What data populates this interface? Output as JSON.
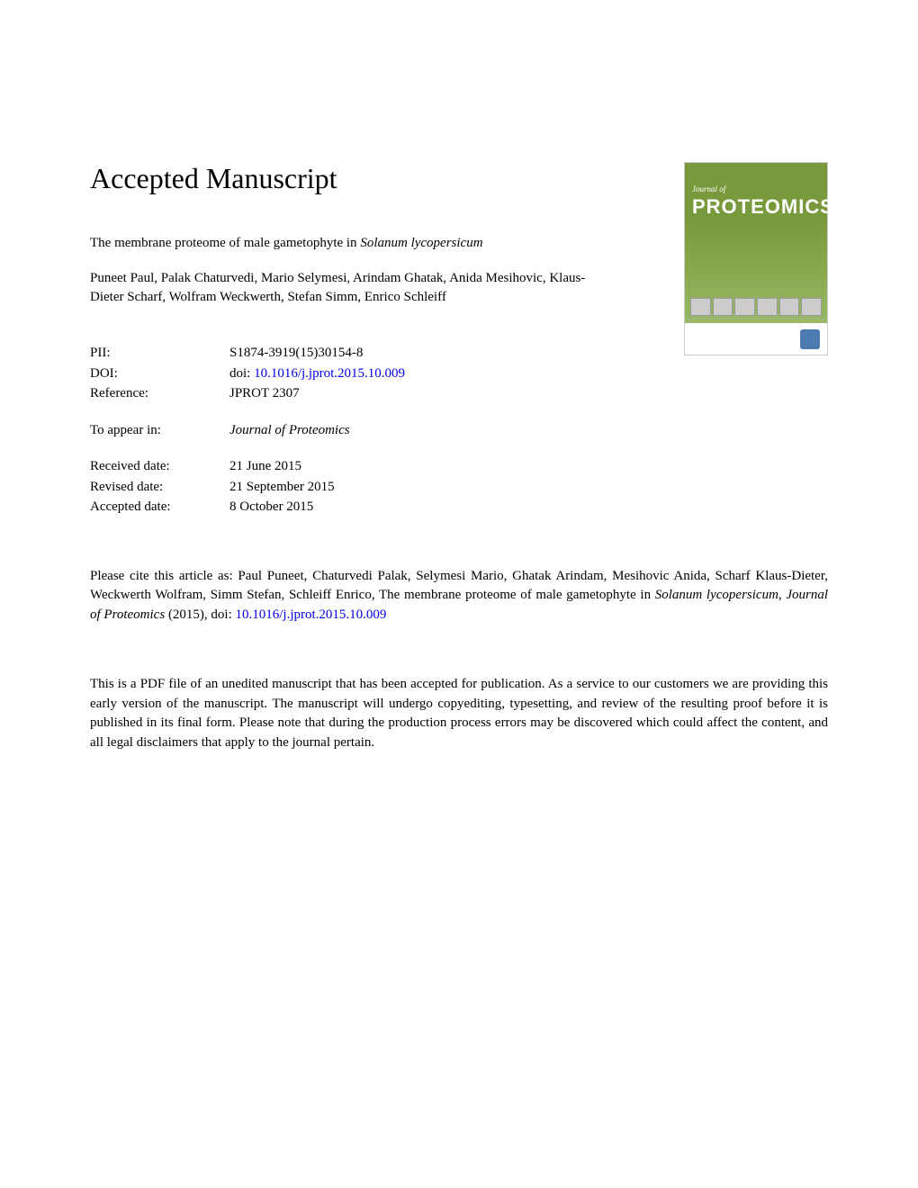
{
  "header": {
    "accepted_title": "Accepted Manuscript",
    "article_title_main": "The membrane proteome of male gametophyte in ",
    "article_title_italic": "Solanum lycopersicum",
    "authors": "Puneet Paul, Palak Chaturvedi, Mario Selymesi, Arindam Ghatak, Anida Mesihovic, Klaus-Dieter Scharf, Wolfram Weckwerth, Stefan Simm, Enrico Schleiff"
  },
  "cover": {
    "journal_label": "Journal of",
    "proteomics_text": "PROTEOMICS"
  },
  "metadata": {
    "pii": {
      "label": "PII:",
      "value": "S1874-3919(15)30154-8"
    },
    "doi": {
      "label": "DOI:",
      "prefix": "doi: ",
      "link": "10.1016/j.jprot.2015.10.009"
    },
    "reference": {
      "label": "Reference:",
      "value": "JPROT 2307"
    },
    "appear_in": {
      "label": "To appear in:",
      "value": "Journal of Proteomics"
    },
    "received": {
      "label": "Received date:",
      "value": "21 June 2015"
    },
    "revised": {
      "label": "Revised date:",
      "value": "21 September 2015"
    },
    "accepted": {
      "label": "Accepted date:",
      "value": "8 October 2015"
    }
  },
  "citation": {
    "text_1": "Please cite this article as: Paul Puneet, Chaturvedi Palak, Selymesi Mario, Ghatak Arindam, Mesihovic Anida, Scharf Klaus-Dieter, Weckwerth Wolfram, Simm Stefan, Schleiff Enrico, The membrane proteome of male gametophyte in ",
    "text_italic": "Solanum lycopersicum",
    "text_2": ", ",
    "text_journal": "Journal of Proteomics",
    "text_3": " (2015), doi: ",
    "doi_link": "10.1016/j.jprot.2015.10.009"
  },
  "disclaimer": {
    "text": "This is a PDF file of an unedited manuscript that has been accepted for publication. As a service to our customers we are providing this early version of the manuscript. The manuscript will undergo copyediting, typesetting, and review of the resulting proof before it is published in its final form. Please note that during the production process errors may be discovered which could affect the content, and all legal disclaimers that apply to the journal pertain."
  },
  "colors": {
    "link": "#0000ee",
    "cover_green": "#789a3d",
    "text": "#000000",
    "background": "#ffffff"
  }
}
